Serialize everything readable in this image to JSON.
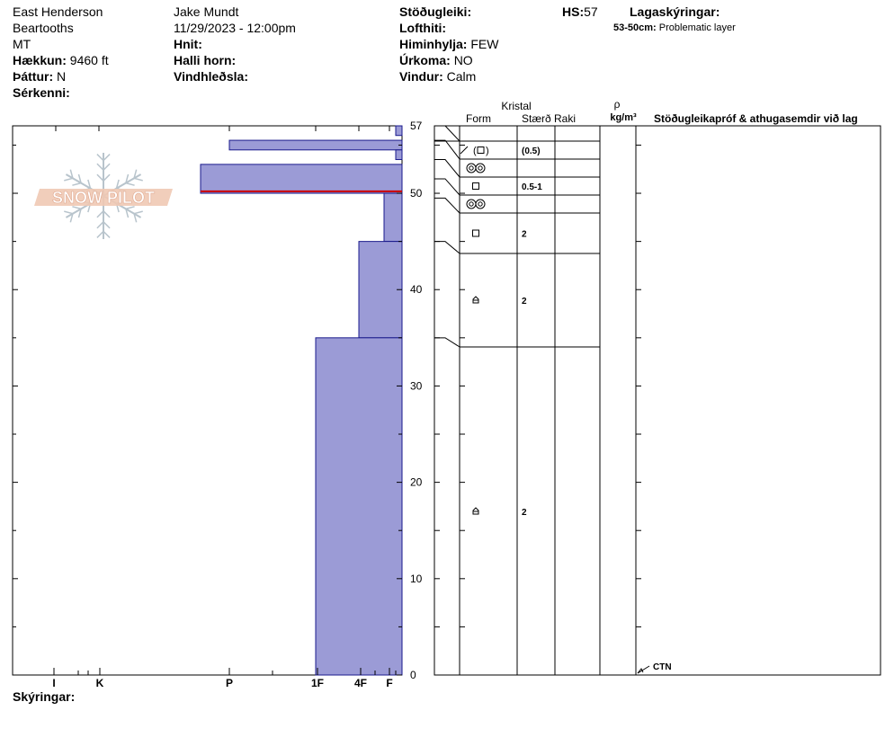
{
  "header": {
    "location": "East Henderson",
    "range": "Beartooths",
    "state": "MT",
    "elevation_label": "Hækkun:",
    "elevation_value": "9460 ft",
    "aspect_label": "Þáttur:",
    "aspect_value": "N",
    "features_label": "Sérkenni:",
    "observer": "Jake Mundt",
    "datetime": "11/29/2023 - 12:00pm",
    "coords_label": "Hnit:",
    "slope_label": "Halli horn:",
    "wind_loading_label": "Vindhleðsla:",
    "stability_label": "Stöðugleiki:",
    "air_temp_label": "Lofthiti:",
    "sky_label": "Himinhylja:",
    "sky_value": "FEW",
    "precip_label": "Úrkoma:",
    "precip_value": "NO",
    "wind_label": "Vindur:",
    "wind_value": "Calm",
    "hs_label": "HS:",
    "hs_value": "57",
    "layer_notes_label": "Lagaskýringar:",
    "layer_note_depth": "53-50cm:",
    "layer_note_text": "Problematic layer",
    "notes_label": "Skýringar:"
  },
  "logo_text": "SNOW PILOT",
  "columns": {
    "crystal": "Kristal",
    "form": "Form",
    "size": "Stærð",
    "moisture": "Raki",
    "density_symbol": "ρ",
    "density_unit": "kg/m³",
    "tests": "Stöðugleikapróf & athugasemdir við lag"
  },
  "chart_data": {
    "type": "bar",
    "y_axis": {
      "label": "",
      "min": 0,
      "max": 57,
      "ticks": [
        0,
        10,
        20,
        30,
        40,
        50,
        57
      ]
    },
    "x_axis": {
      "hardness_labels": [
        "I",
        "K",
        "P",
        "1F",
        "4F",
        "F"
      ],
      "direction": "right-to-left"
    },
    "hardness_layers": [
      {
        "top": 57,
        "bottom": 56,
        "hardness": "F"
      },
      {
        "top": 55.5,
        "bottom": 54.5,
        "hardness": "P+"
      },
      {
        "top": 54.5,
        "bottom": 53.5,
        "hardness": "F"
      },
      {
        "top": 53,
        "bottom": 50,
        "hardness": "P-"
      },
      {
        "top": 50,
        "bottom": 45,
        "hardness": "F+"
      },
      {
        "top": 45,
        "bottom": 35,
        "hardness": "4F"
      },
      {
        "top": 35,
        "bottom": 0,
        "hardness": "1F"
      }
    ],
    "problem_layer_depth": 50.2,
    "grain_layers": [
      {
        "top": 57,
        "bottom": 55.5,
        "form": "decomposing-to-facet",
        "size": "(0.5)"
      },
      {
        "top": 55.5,
        "bottom": 53.5,
        "form": "melt-forms",
        "size": ""
      },
      {
        "top": 53.5,
        "bottom": 51.5,
        "form": "faceted",
        "size": "0.5-1"
      },
      {
        "top": 51.5,
        "bottom": 49.5,
        "form": "melt-forms",
        "size": ""
      },
      {
        "top": 49.5,
        "bottom": 45,
        "form": "faceted",
        "size": "2"
      },
      {
        "top": 45,
        "bottom": 35,
        "form": "depth-hoar",
        "size": "2"
      },
      {
        "top": 35,
        "bottom": 0,
        "form": "depth-hoar",
        "size": "2"
      }
    ],
    "tests": [
      {
        "depth": 0,
        "label": "CTN"
      }
    ]
  }
}
